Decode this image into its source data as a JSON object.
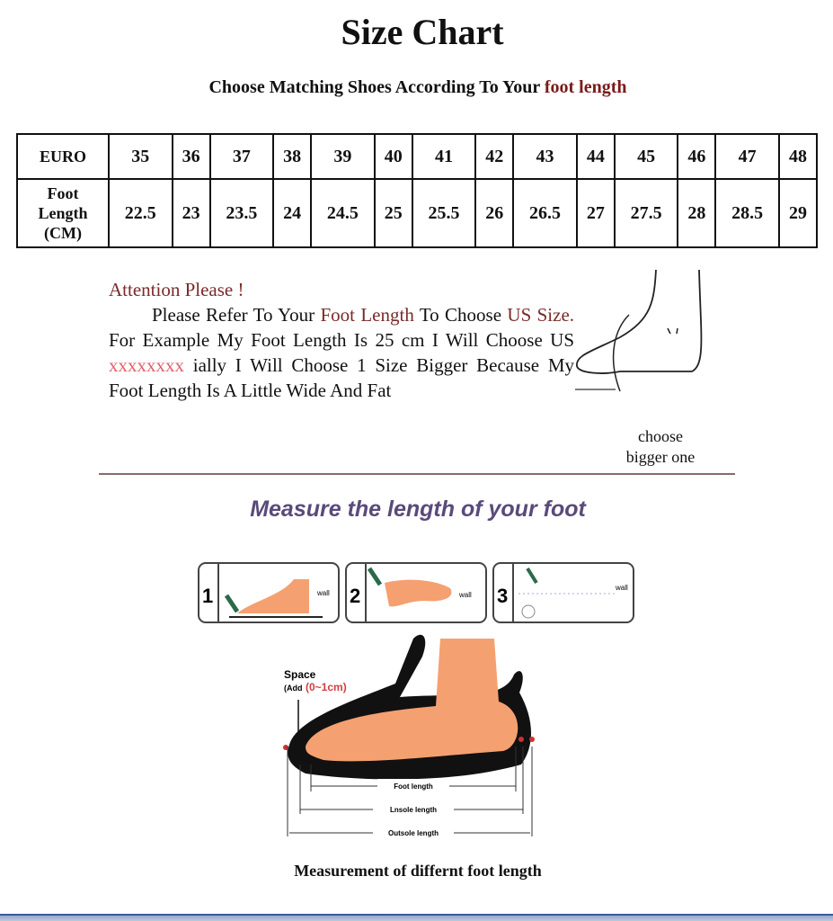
{
  "title": "Size Chart",
  "subtitle": {
    "prefix": "Choose Matching Shoes According To Your ",
    "highlight": "foot length"
  },
  "table": {
    "euro_label": "EURO",
    "foot_label_lines": [
      "Foot",
      "Length",
      "(CM)"
    ],
    "euro": [
      "35",
      "36",
      "37",
      "38",
      "39",
      "40",
      "41",
      "42",
      "43",
      "44",
      "45",
      "46",
      "47",
      "48"
    ],
    "foot_length": [
      "22.5",
      "23",
      "23.5",
      "24",
      "24.5",
      "25",
      "25.5",
      "26",
      "26.5",
      "27",
      "27.5",
      "28",
      "28.5",
      "29"
    ]
  },
  "attention": {
    "heading": "Attention Please !",
    "p1": "Please Refer To Your ",
    "p2": "Foot Length",
    "p3": " To Choose ",
    "p4": "US Size.",
    "p5": " For Example My Foot Length Is 25 cm I Will Choose US ",
    "p6": "xxxxxxxx",
    "p7": " ially I Will Choose 1 Size Bigger Because My Foot Length Is A Little Wide And Fat"
  },
  "choose_note": [
    "choose",
    "bigger one"
  ],
  "measure_title": "Measure the length of your foot",
  "steps": [
    {
      "num": "1",
      "label": "wall"
    },
    {
      "num": "2",
      "label": "wall"
    },
    {
      "num": "3",
      "label": "wall"
    }
  ],
  "diagram": {
    "space_label": "Space",
    "add_prefix": "(Add",
    "add_value": "(0~1cm)",
    "foot_length": "Foot length",
    "insole_length": "Lnsole length",
    "outsole_length": "Outsole length"
  },
  "caption": "Measurement of differnt foot length",
  "colors": {
    "accent_red": "#7a1a1a",
    "measure_title": "#5a4a7a",
    "skin": "#f5a070"
  }
}
